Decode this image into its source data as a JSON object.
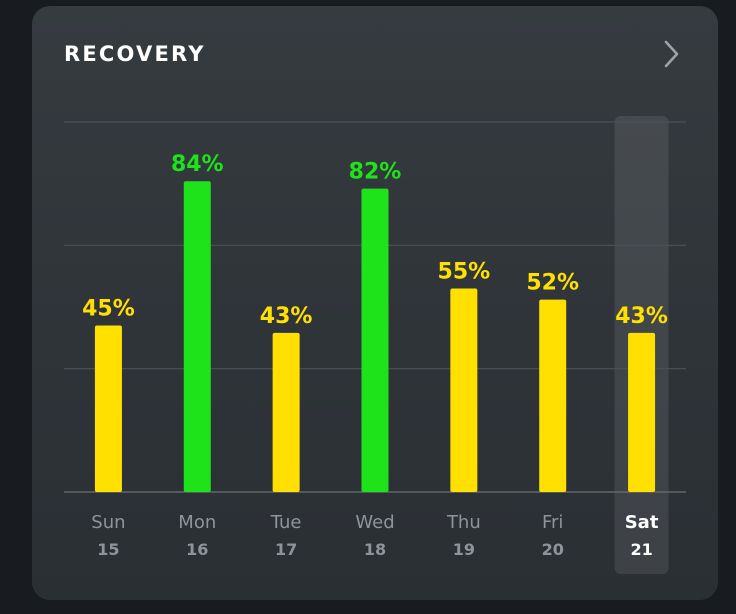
{
  "card": {
    "title": "RECOVERY",
    "chevron_icon": "chevron-right-icon"
  },
  "colors": {
    "high": "#1ee31a",
    "medium": "#ffe000",
    "label_selected": "#ffffff",
    "label_default": "#8f949a"
  },
  "chart_data": {
    "type": "bar",
    "title": "RECOVERY",
    "categories": [
      "Sun",
      "Mon",
      "Tue",
      "Wed",
      "Thu",
      "Fri",
      "Sat"
    ],
    "dates": [
      "15",
      "16",
      "17",
      "18",
      "19",
      "20",
      "21"
    ],
    "values": [
      45,
      84,
      43,
      82,
      55,
      52,
      43
    ],
    "labels": [
      "45%",
      "84%",
      "43%",
      "82%",
      "55%",
      "52%",
      "43%"
    ],
    "unit": "%",
    "ylim": [
      0,
      100
    ],
    "grid": true,
    "selected_index": 6
  }
}
